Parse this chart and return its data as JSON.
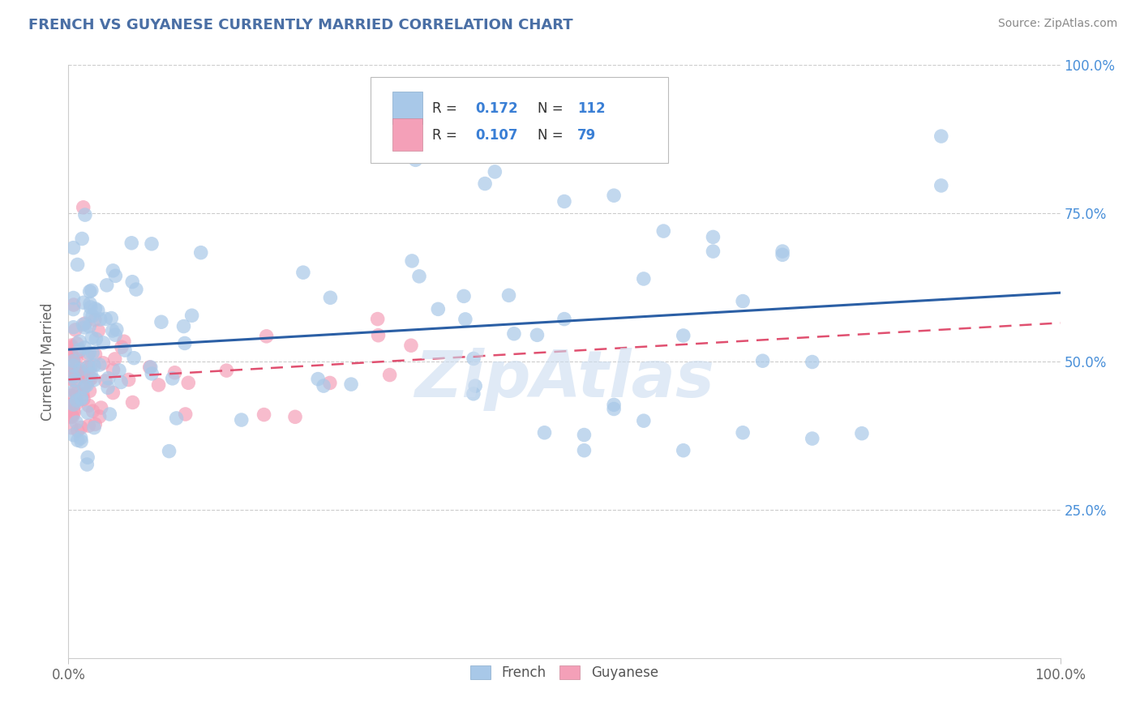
{
  "title": "FRENCH VS GUYANESE CURRENTLY MARRIED CORRELATION CHART",
  "source": "Source: ZipAtlas.com",
  "ylabel_label": "Currently Married",
  "xlim": [
    0.0,
    1.0
  ],
  "ylim": [
    0.0,
    1.0
  ],
  "french_R": "0.172",
  "french_N": "112",
  "guyanese_R": "0.107",
  "guyanese_N": "79",
  "french_color": "#a8c8e8",
  "guyanese_color": "#f4a0b8",
  "french_line_color": "#2b5fa5",
  "guyanese_line_color": "#e05070",
  "background_color": "#ffffff",
  "grid_color": "#cccccc",
  "title_color": "#4a6fa5",
  "watermark": "ZipAtlas",
  "watermark_color": "#ccddf0",
  "right_axis_color": "#4a90d9",
  "legend_text_color_R": "#555555",
  "legend_text_color_N": "#555555",
  "legend_value_color": "#3a7fd5",
  "source_color": "#888888"
}
